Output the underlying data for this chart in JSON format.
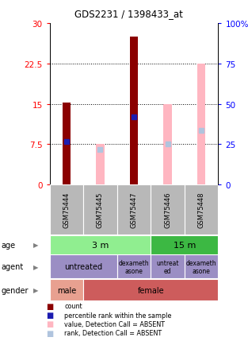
{
  "title": "GDS2231 / 1398433_at",
  "samples": [
    "GSM75444",
    "GSM75445",
    "GSM75447",
    "GSM75446",
    "GSM75448"
  ],
  "left_ylim": [
    0,
    30
  ],
  "right_ylim": [
    0,
    100
  ],
  "left_yticks": [
    0,
    7.5,
    15,
    22.5,
    30
  ],
  "right_yticks": [
    0,
    25,
    50,
    75,
    100
  ],
  "left_ytick_labels": [
    "0",
    "7.5",
    "15",
    "22.5",
    "30"
  ],
  "right_ytick_labels": [
    "0",
    "25",
    "50",
    "75",
    "100%"
  ],
  "count_values": [
    15.3,
    0,
    27.5,
    0,
    0
  ],
  "rank_values": [
    8.0,
    0,
    12.5,
    0,
    0
  ],
  "absent_value_values": [
    0,
    7.5,
    0,
    15.0,
    22.5
  ],
  "absent_rank_values": [
    0,
    6.5,
    0,
    7.5,
    10.0
  ],
  "count_color": "#8B0000",
  "rank_color": "#1C1CB0",
  "absent_value_color": "#FFB6C1",
  "absent_rank_color": "#B0C4DE",
  "grid_color": "#000000",
  "sample_label_bg": "#B8B8B8",
  "age_3m_color": "#90EE90",
  "age_15m_color": "#3CB843",
  "agent_color": "#9B8EC4",
  "gender_male_color": "#E8A090",
  "gender_female_color": "#CD5C5C",
  "bar_width": 0.25
}
